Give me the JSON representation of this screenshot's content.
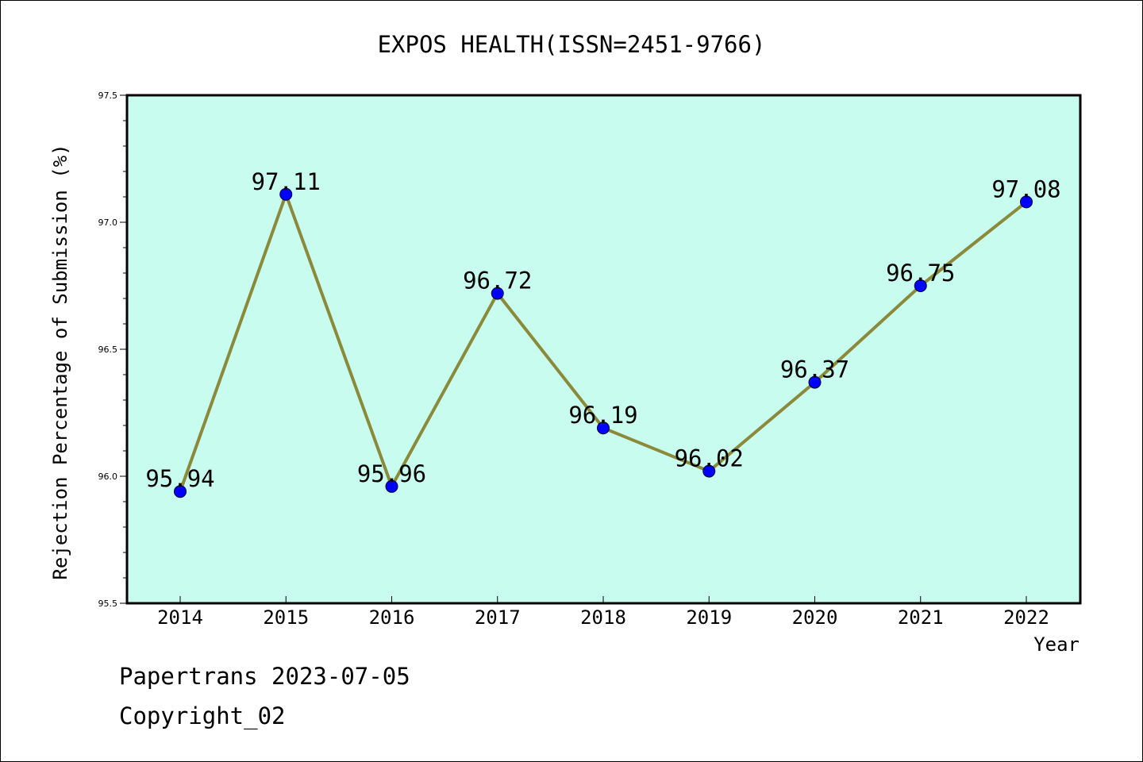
{
  "chart_data": {
    "type": "line",
    "title": "EXPOS HEALTH(ISSN=2451-9766)",
    "xlabel": "Year",
    "ylabel": "Rejection Percentage of Submission (%)",
    "categories": [
      "2014",
      "2015",
      "2016",
      "2017",
      "2018",
      "2019",
      "2020",
      "2021",
      "2022"
    ],
    "values": [
      95.94,
      97.11,
      95.96,
      96.72,
      96.19,
      96.02,
      96.37,
      96.75,
      97.08
    ],
    "data_labels": [
      "95.94",
      "97.11",
      "95.96",
      "96.72",
      "96.19",
      "96.02",
      "96.37",
      "96.75",
      "97.08"
    ],
    "ylim": [
      95.5,
      97.5
    ],
    "yticks": [
      "95.5",
      "96.0",
      "96.5",
      "97.0",
      "97.5"
    ],
    "grid": false,
    "colors": {
      "plot_background": "#c8fcee",
      "line": "#8b8a3a",
      "marker": "#0000ff"
    }
  },
  "footer": {
    "line1": "Papertrans 2023-07-05",
    "line2": "Copyright_02"
  }
}
